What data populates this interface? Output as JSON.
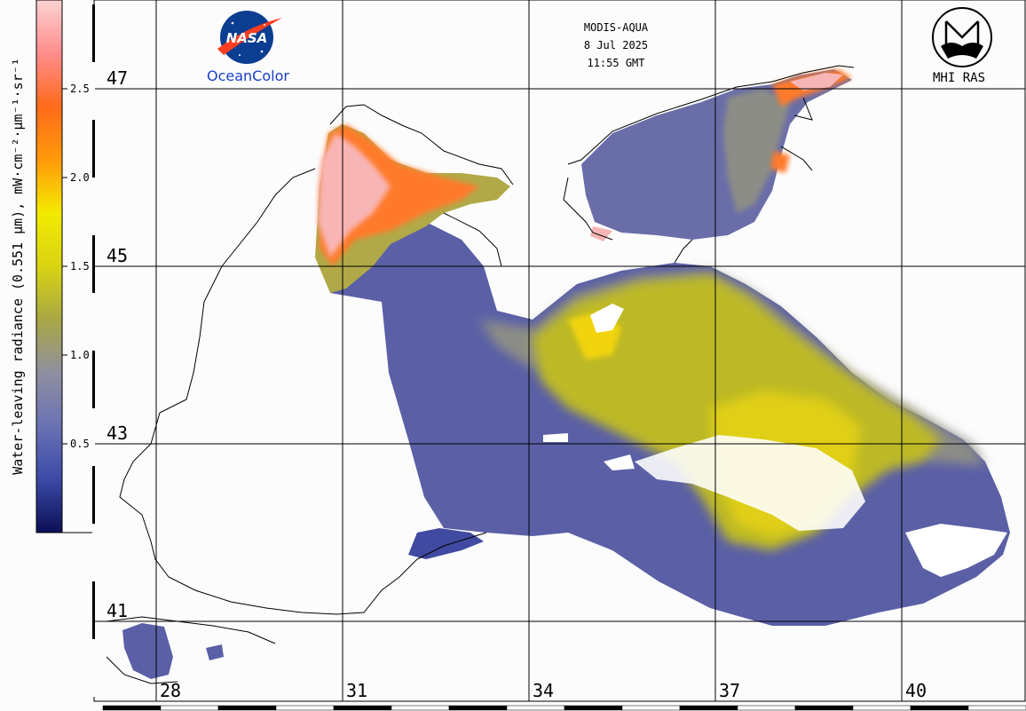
{
  "header": {
    "sensor": "MODIS-AQUA",
    "date": "8 Jul 2025",
    "time": "11:55 GMT"
  },
  "logos": {
    "nasa_text": "NASA",
    "oceancolor_text": "OceanColor",
    "mhi_text": "MHI RAS"
  },
  "colorbar": {
    "label": "Water-leaving radiance (0.551 µm), mW·cm⁻²·µm⁻¹·sr⁻¹",
    "ticks": [
      "0.5",
      "1.0",
      "1.5",
      "2.0",
      "2.5"
    ],
    "range": [
      0,
      3.0
    ],
    "colors": [
      "#0b0f55",
      "#3b4aa6",
      "#6a72b4",
      "#8f8fa0",
      "#a9a744",
      "#d9d313",
      "#f3ea00",
      "#ff9a0a",
      "#ff6a1a",
      "#ff8d8d",
      "#fbd2d2"
    ]
  },
  "map": {
    "lat_labels": [
      "47",
      "45",
      "43",
      "41"
    ],
    "lon_labels": [
      "28",
      "31",
      "34",
      "37",
      "40"
    ],
    "colors": {
      "low": "#5a60a8",
      "mid": "#8a8c8a",
      "high": "#c7c22a",
      "bright": "#e8d21a",
      "very_high": "#ff7a2a",
      "peak": "#f8b5b5",
      "cloud": "#ffffff",
      "land": "#fcfcfc"
    }
  }
}
